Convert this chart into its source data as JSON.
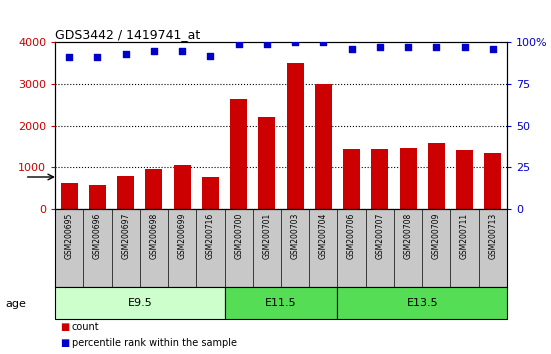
{
  "title": "GDS3442 / 1419741_at",
  "samples": [
    "GSM200695",
    "GSM200696",
    "GSM200697",
    "GSM200698",
    "GSM200699",
    "GSM200716",
    "GSM200700",
    "GSM200701",
    "GSM200703",
    "GSM200704",
    "GSM200706",
    "GSM200707",
    "GSM200708",
    "GSM200709",
    "GSM200711",
    "GSM200713"
  ],
  "counts": [
    620,
    580,
    800,
    950,
    1050,
    760,
    2650,
    2200,
    3500,
    3000,
    1430,
    1450,
    1460,
    1580,
    1410,
    1350
  ],
  "percentile_ranks": [
    91,
    91,
    93,
    95,
    95,
    92,
    99,
    99,
    100,
    100,
    96,
    97,
    97,
    97,
    97,
    96
  ],
  "bar_color": "#cc0000",
  "dot_color": "#0000cc",
  "ylim_left": [
    0,
    4000
  ],
  "ylim_right": [
    0,
    100
  ],
  "yticks_left": [
    0,
    1000,
    2000,
    3000,
    4000
  ],
  "yticks_right": [
    0,
    25,
    50,
    75,
    100
  ],
  "group_e95_color": "#ccffcc",
  "group_e115_color": "#55dd55",
  "group_e135_color": "#55dd55",
  "xlabel_bg_color": "#c8c8c8",
  "age_label": "age",
  "legend_count_label": "count",
  "legend_percentile_label": "percentile rank within the sample",
  "background_color": "#ffffff",
  "n_samples": 16,
  "n_e95": 6,
  "n_e115": 4,
  "n_e135": 6
}
